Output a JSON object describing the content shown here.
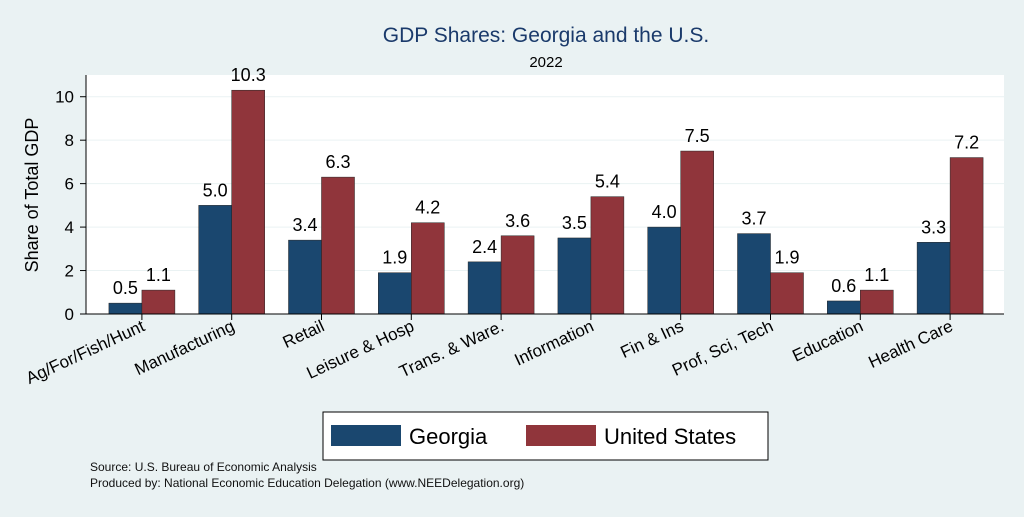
{
  "chart_data": {
    "type": "bar",
    "title": "GDP Shares: Georgia and the U.S.",
    "subtitle": "2022",
    "ylabel": "Share of Total GDP",
    "xlabel": "",
    "ylim": [
      0,
      11
    ],
    "yticks": [
      0,
      2,
      4,
      6,
      8,
      10
    ],
    "grid": true,
    "legend_position": "bottom",
    "categories": [
      "Ag/For/Fish/Hunt",
      "Manufacturing",
      "Retail",
      "Leisure & Hosp",
      "Trans. & Ware.",
      "Information",
      "Fin & Ins",
      "Prof, Sci, Tech",
      "Education",
      "Health Care"
    ],
    "series": [
      {
        "name": "Georgia",
        "color": "#1a476f",
        "values": [
          0.5,
          5.0,
          3.4,
          1.9,
          2.4,
          3.5,
          4.0,
          3.7,
          0.6,
          3.3
        ]
      },
      {
        "name": "United States",
        "color": "#90353b",
        "values": [
          1.1,
          10.3,
          6.3,
          4.2,
          3.6,
          5.4,
          7.5,
          1.9,
          1.1,
          7.2
        ]
      }
    ]
  },
  "footer": {
    "source": "Source: U.S. Bureau of Economic Analysis",
    "produced_by": "Produced by: National Economic Education Delegation (www.NEEDelegation.org)"
  }
}
